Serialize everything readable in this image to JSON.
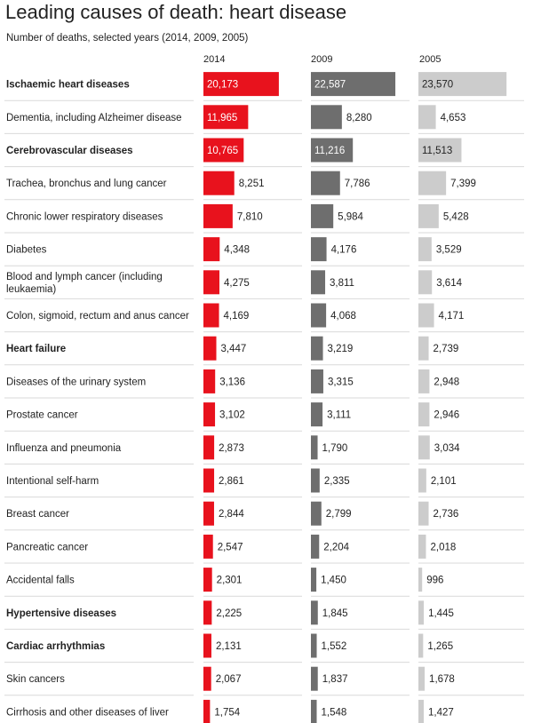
{
  "title": "Leading causes of death: heart disease",
  "subtitle": "Number of deaths, selected years (2014, 2009, 2005)",
  "colors": {
    "2014": "#e8121d",
    "2009": "#6e6e6e",
    "2005": "#cccccc",
    "divider": "#d9d9d9"
  },
  "chart_data": {
    "type": "bar",
    "title": "Leading causes of death: heart disease",
    "subtitle": "Number of deaths, selected years (2014, 2009, 2005)",
    "orientation": "horizontal",
    "categories": [
      {
        "label": "Ischaemic heart diseases",
        "bold": true
      },
      {
        "label": "Dementia, including Alzheimer disease",
        "bold": false
      },
      {
        "label": "Cerebrovascular diseases",
        "bold": true
      },
      {
        "label": "Trachea, bronchus and lung cancer",
        "bold": false
      },
      {
        "label": "Chronic lower respiratory diseases",
        "bold": false
      },
      {
        "label": "Diabetes",
        "bold": false
      },
      {
        "label": "Blood and lymph cancer (including leukaemia)",
        "bold": false
      },
      {
        "label": "Colon, sigmoid, rectum and anus cancer",
        "bold": false
      },
      {
        "label": "Heart failure",
        "bold": true
      },
      {
        "label": "Diseases of the urinary system",
        "bold": false
      },
      {
        "label": "Prostate cancer",
        "bold": false
      },
      {
        "label": "Influenza and pneumonia",
        "bold": false
      },
      {
        "label": "Intentional self-harm",
        "bold": false
      },
      {
        "label": "Breast cancer",
        "bold": false
      },
      {
        "label": "Pancreatic cancer",
        "bold": false
      },
      {
        "label": "Accidental falls",
        "bold": false
      },
      {
        "label": "Hypertensive diseases",
        "bold": true
      },
      {
        "label": "Cardiac arrhythmias",
        "bold": true
      },
      {
        "label": "Skin cancers",
        "bold": false
      },
      {
        "label": "Cirrhosis and other diseases of liver",
        "bold": false
      }
    ],
    "series": [
      {
        "name": "2014",
        "values": [
          20173,
          11965,
          10765,
          8251,
          7810,
          4348,
          4275,
          4169,
          3447,
          3136,
          3102,
          2873,
          2861,
          2844,
          2547,
          2301,
          2225,
          2131,
          2067,
          1754
        ],
        "labels": [
          "20,173",
          "11,965",
          "10,765",
          "8,251",
          "7,810",
          "4,348",
          "4,275",
          "4,169",
          "3,447",
          "3,136",
          "3,102",
          "2,873",
          "2,861",
          "2,844",
          "2,547",
          "2,301",
          "2,225",
          "2,131",
          "2,067",
          "1,754"
        ]
      },
      {
        "name": "2009",
        "values": [
          22587,
          8280,
          11216,
          7786,
          5984,
          4176,
          3811,
          4068,
          3219,
          3315,
          3111,
          1790,
          2335,
          2799,
          2204,
          1450,
          1845,
          1552,
          1837,
          1548
        ],
        "labels": [
          "22,587",
          "8,280",
          "11,216",
          "7,786",
          "5,984",
          "4,176",
          "3,811",
          "4,068",
          "3,219",
          "3,315",
          "3,111",
          "1,790",
          "2,335",
          "2,799",
          "2,204",
          "1,450",
          "1,845",
          "1,552",
          "1,837",
          "1,548"
        ]
      },
      {
        "name": "2005",
        "values": [
          23570,
          4653,
          11513,
          7399,
          5428,
          3529,
          3614,
          4171,
          2739,
          2948,
          2946,
          3034,
          2101,
          2736,
          2018,
          996,
          1445,
          1265,
          1678,
          1427
        ],
        "labels": [
          "23,570",
          "4,653",
          "11,513",
          "7,399",
          "5,428",
          "3,529",
          "3,614",
          "4,171",
          "2,739",
          "2,948",
          "2,946",
          "3,034",
          "2,101",
          "2,736",
          "2,018",
          "996",
          "1,445",
          "1,265",
          "1,678",
          "1,427"
        ]
      }
    ],
    "xlim": [
      0,
      24000
    ],
    "legend": "column headers above each bar column",
    "grid": false
  }
}
